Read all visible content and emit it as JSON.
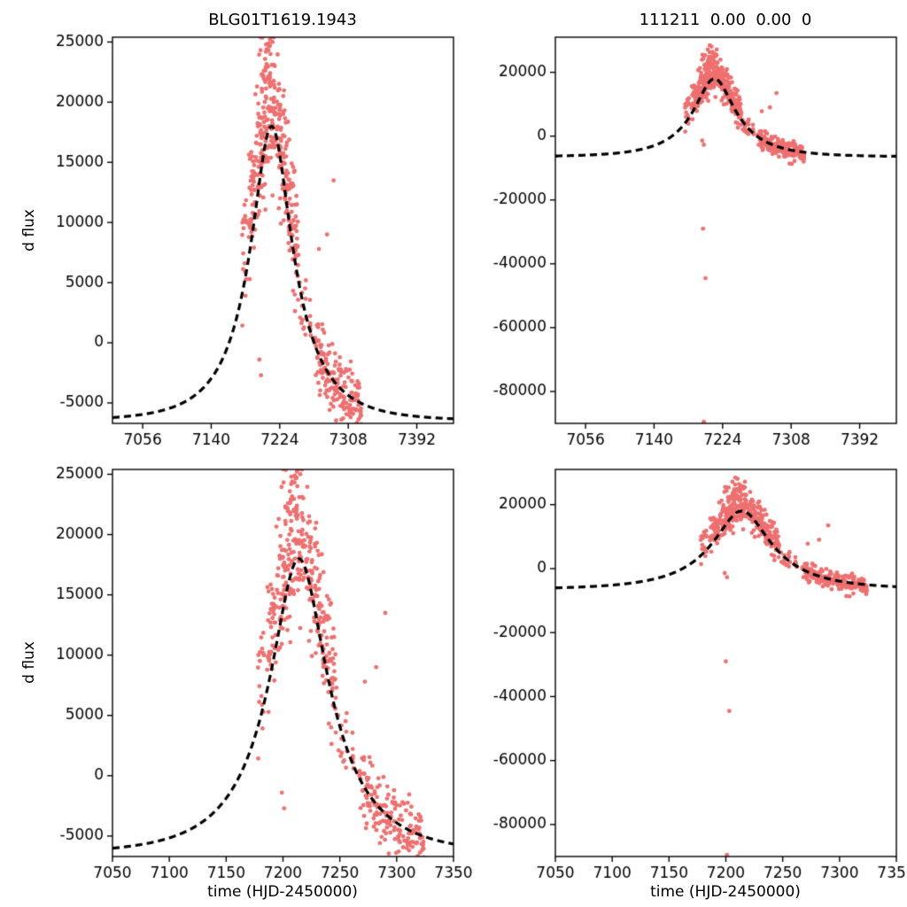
{
  "figure": {
    "background": "#ffffff",
    "marker_color": "#ef6f6f",
    "line_color": "#000000",
    "text_color": "#000000"
  },
  "chart_data": {
    "type": "scatter",
    "description": "Microlensing difference-flux light curve (red scatter points) with dashed black Paczynski model fit, shown in four panels: top row wide time range, bottom row zoomed to 7050-7350; left column narrow flux range, right column wide flux range showing outliers.",
    "marker_radius": 2.4,
    "model_curve": {
      "type": "paczynski",
      "t0": 7214,
      "tE": 72,
      "u0": 0.35,
      "Fs": 12330,
      "F0": -6500,
      "peak_flux": 18000,
      "baseline_flux": -6500,
      "dash": [
        8,
        5
      ],
      "line_width": 3.2
    },
    "scatter_groups": [
      {
        "t_min": 7178,
        "t_max": 7184,
        "n": 16,
        "sigma": 2600,
        "bias": 3200
      },
      {
        "t_min": 7186,
        "t_max": 7197,
        "n": 50,
        "sigma": 3000,
        "bias": 3200
      },
      {
        "t_min": 7197,
        "t_max": 7217,
        "n": 150,
        "sigma": 3800,
        "bias": 3200
      },
      {
        "t_min": 7217,
        "t_max": 7247,
        "n": 150,
        "sigma": 3000,
        "bias": 2200
      },
      {
        "t_min": 7248,
        "t_max": 7263,
        "n": 20,
        "sigma": 1400,
        "bias": 300
      },
      {
        "t_min": 7267,
        "t_max": 7324,
        "n": 170,
        "sigma": 1400,
        "bias": -200
      }
    ],
    "outliers": [
      [
        7199,
        -1400
      ],
      [
        7201,
        -2700
      ],
      [
        7200,
        -29000
      ],
      [
        7203,
        -44500
      ],
      [
        7201,
        -89500
      ],
      [
        7272,
        7800
      ],
      [
        7282,
        9000
      ],
      [
        7290,
        13500
      ],
      [
        7306,
        -8600
      ]
    ],
    "panels": [
      {
        "id": "top-left",
        "title": "BLG01T1619.1943",
        "xlabel": "",
        "ylabel": "d flux",
        "xlim": [
          7019,
          7437
        ],
        "ylim": [
          -6700,
          25400
        ],
        "xticks": [
          7056,
          7140,
          7224,
          7308,
          7392
        ],
        "yticks": [
          -5000,
          0,
          5000,
          10000,
          15000,
          20000,
          25000
        ]
      },
      {
        "id": "top-right",
        "title": "111211  0.00  0.00  0",
        "xlabel": "",
        "ylabel": "",
        "xlim": [
          7019,
          7437
        ],
        "ylim": [
          -90000,
          31000
        ],
        "xticks": [
          7056,
          7140,
          7224,
          7308,
          7392
        ],
        "yticks": [
          -80000,
          -60000,
          -40000,
          -20000,
          0,
          20000
        ]
      },
      {
        "id": "bottom-left",
        "title": "",
        "xlabel": "time (HJD-2450000)",
        "ylabel": "d flux",
        "xlim": [
          7050,
          7350
        ],
        "ylim": [
          -6700,
          25400
        ],
        "xticks": [
          7050,
          7100,
          7150,
          7200,
          7250,
          7300,
          7350
        ],
        "yticks": [
          -5000,
          0,
          5000,
          10000,
          15000,
          20000,
          25000
        ]
      },
      {
        "id": "bottom-right",
        "title": "",
        "xlabel": "time (HJD-2450000)",
        "ylabel": "",
        "xlim": [
          7050,
          7350
        ],
        "ylim": [
          -90000,
          31000
        ],
        "xticks": [
          7050,
          7100,
          7150,
          7200,
          7250,
          7300,
          7350
        ],
        "yticks": [
          -80000,
          -60000,
          -40000,
          -20000,
          0,
          20000
        ]
      }
    ]
  }
}
